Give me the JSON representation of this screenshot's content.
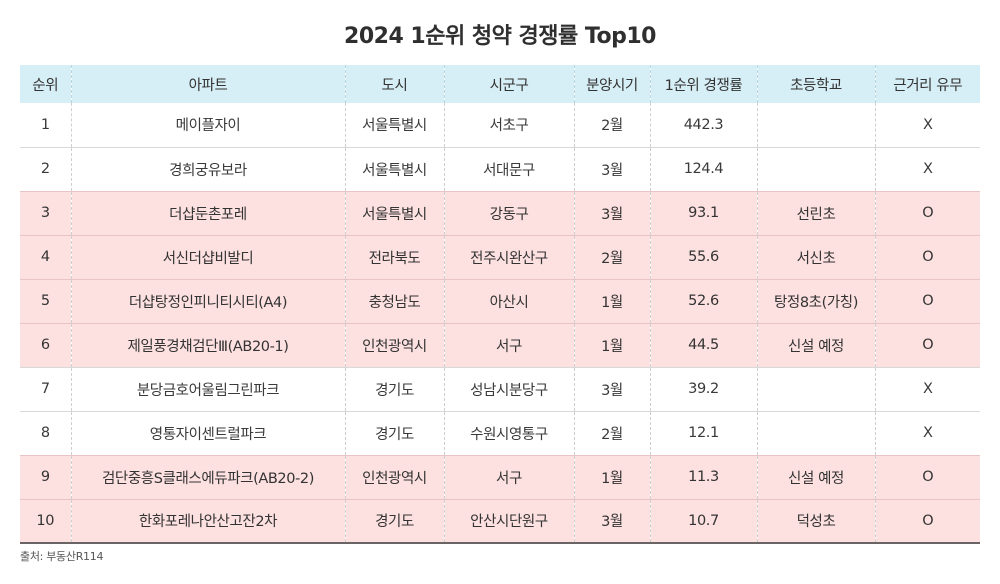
{
  "title": "2024 1순위 청약 경쟁률 Top10",
  "table": {
    "headers": [
      "순위",
      "아파트",
      "도시",
      "시군구",
      "분양시기",
      "1순위 경쟁률",
      "초등학교",
      "근거리 유무"
    ],
    "rows": [
      {
        "rank": "1",
        "apartment": "메이플자이",
        "city": "서울특별시",
        "district": "서초구",
        "month": "2월",
        "ratio": "442.3",
        "school": "",
        "nearby": "X",
        "highlight": false
      },
      {
        "rank": "2",
        "apartment": "경희궁유보라",
        "city": "서울특별시",
        "district": "서대문구",
        "month": "3월",
        "ratio": "124.4",
        "school": "",
        "nearby": "X",
        "highlight": false
      },
      {
        "rank": "3",
        "apartment": "더샵둔촌포레",
        "city": "서울특별시",
        "district": "강동구",
        "month": "3월",
        "ratio": "93.1",
        "school": "선린초",
        "nearby": "O",
        "highlight": true
      },
      {
        "rank": "4",
        "apartment": "서신더샵비발디",
        "city": "전라북도",
        "district": "전주시완산구",
        "month": "2월",
        "ratio": "55.6",
        "school": "서신초",
        "nearby": "O",
        "highlight": true
      },
      {
        "rank": "5",
        "apartment": "더샵탕정인피니티시티(A4)",
        "city": "충청남도",
        "district": "아산시",
        "month": "1월",
        "ratio": "52.6",
        "school": "탕정8초(가칭)",
        "nearby": "O",
        "highlight": true
      },
      {
        "rank": "6",
        "apartment": "제일풍경채검단Ⅲ(AB20-1)",
        "city": "인천광역시",
        "district": "서구",
        "month": "1월",
        "ratio": "44.5",
        "school": "신설 예정",
        "nearby": "O",
        "highlight": true
      },
      {
        "rank": "7",
        "apartment": "분당금호어울림그린파크",
        "city": "경기도",
        "district": "성남시분당구",
        "month": "3월",
        "ratio": "39.2",
        "school": "",
        "nearby": "X",
        "highlight": false
      },
      {
        "rank": "8",
        "apartment": "영통자이센트럴파크",
        "city": "경기도",
        "district": "수원시영통구",
        "month": "2월",
        "ratio": "12.1",
        "school": "",
        "nearby": "X",
        "highlight": false
      },
      {
        "rank": "9",
        "apartment": "검단중흥S클래스에듀파크(AB20-2)",
        "city": "인천광역시",
        "district": "서구",
        "month": "1월",
        "ratio": "11.3",
        "school": "신설 예정",
        "nearby": "O",
        "highlight": true
      },
      {
        "rank": "10",
        "apartment": "한화포레나안산고잔2차",
        "city": "경기도",
        "district": "안산시단원구",
        "month": "3월",
        "ratio": "10.7",
        "school": "덕성초",
        "nearby": "O",
        "highlight": true
      }
    ]
  },
  "source": "출처: 부동산R114",
  "colors": {
    "header_bg": "#d6eef5",
    "highlight_row_bg": "#fde0e0",
    "text": "#333333",
    "bottom_rule": "#6b6464"
  }
}
